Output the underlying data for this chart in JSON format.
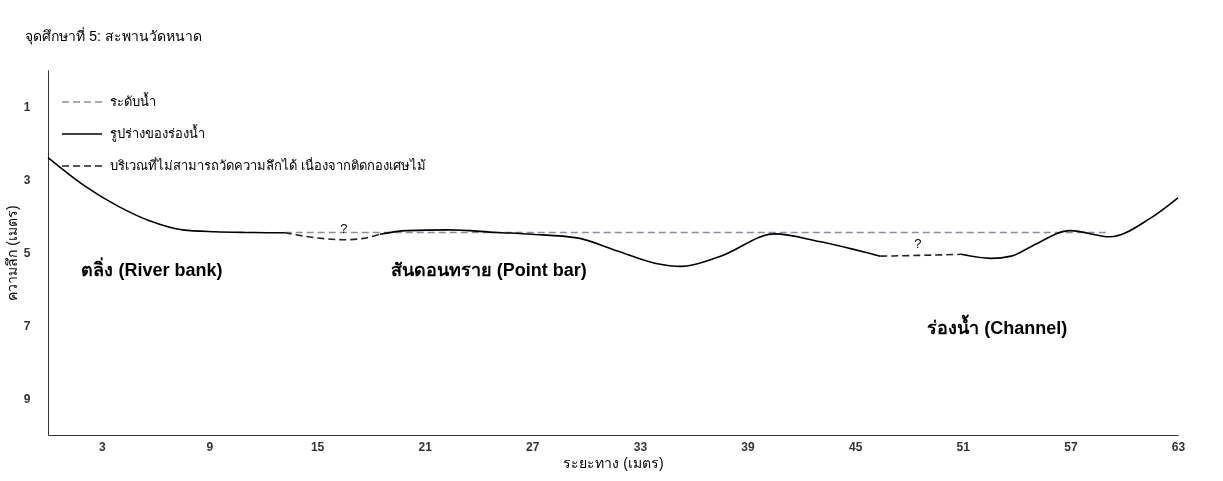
{
  "chart_data": {
    "type": "line",
    "title": "จุดศึกษาที่ 5: สะพานวัดหนาด",
    "xlabel": "ระยะทาง (เมตร)",
    "ylabel": "ความลึก (เมตร)",
    "xlim": [
      0,
      63
    ],
    "xticks": [
      3,
      9,
      15,
      21,
      27,
      33,
      39,
      45,
      51,
      57,
      63
    ],
    "ylim": [
      10,
      0
    ],
    "yticks": [
      1,
      3,
      5,
      7,
      9
    ],
    "grid": false,
    "legend": "top left",
    "marker": "none",
    "series": [
      {
        "name": "ระดับน้ำ",
        "color": "#8c8ca0",
        "line_style": "dashed",
        "x": [
          13.2,
          59.2
        ],
        "values": [
          4.45,
          4.45
        ]
      },
      {
        "name": "รูปร่างของร่องน้ำ",
        "color": "#000000",
        "line_style": "solid",
        "x": [
          0,
          2,
          3.9,
          5.7,
          7.5,
          9.3,
          11,
          13.2,
          15.5,
          18.5,
          20,
          22.3,
          25,
          27,
          29.5,
          31.7,
          33.9,
          35.3,
          37.5,
          40.5,
          43,
          46.4,
          48,
          50.9,
          52.6,
          53.7,
          54.8,
          57,
          59.2,
          61.4,
          63
        ],
        "values": [
          2.4,
          3.16,
          3.73,
          4.14,
          4.38,
          4.43,
          4.45,
          4.46,
          null,
          4.5,
          4.4,
          4.38,
          4.45,
          4.5,
          4.6,
          4.95,
          5.3,
          5.38,
          5.1,
          4.49,
          4.7,
          5.1,
          null,
          5.05,
          5.16,
          5.1,
          4.84,
          4.4,
          4.57,
          4.08,
          3.5
        ]
      },
      {
        "name": "บริเวณที่ไม่สามารถวัดความลึกได้ เนื่องจากติดกองเศษไม้",
        "color": "#222222",
        "line_style": "dashed",
        "x": [
          13.2,
          15,
          16.5,
          17.5,
          18.5,
          30,
          46.4,
          48.5,
          50.9
        ],
        "values": [
          4.46,
          4.6,
          4.65,
          4.62,
          4.5,
          null,
          5.1,
          5.08,
          5.05
        ]
      }
    ],
    "annotations": [
      {
        "text": "?",
        "x": 16.5,
        "y": 4.65
      },
      {
        "text": "?",
        "x": 48.5,
        "y": 5.08
      },
      "ตลิ่ง (River bank)",
      "สันดอนทราย (Point bar)",
      "ร่องน้ำ (Channel)"
    ]
  }
}
